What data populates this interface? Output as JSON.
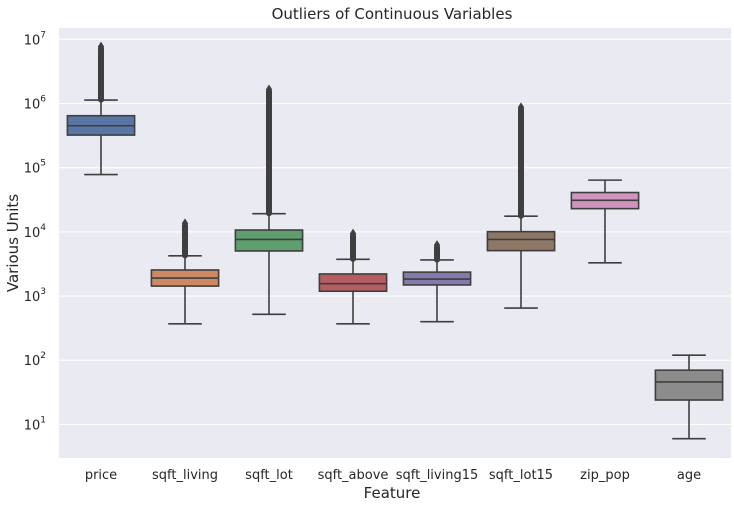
{
  "chart_data": {
    "type": "boxplot",
    "title": "Outliers of Continuous Variables",
    "xlabel": "Feature",
    "ylabel": "Various Units",
    "yscale": "log",
    "ylim": [
      3,
      15000000
    ],
    "y_ticks": [
      {
        "value": 10,
        "base": "10",
        "exp": "1"
      },
      {
        "value": 100,
        "base": "10",
        "exp": "2"
      },
      {
        "value": 1000,
        "base": "10",
        "exp": "3"
      },
      {
        "value": 10000,
        "base": "10",
        "exp": "4"
      },
      {
        "value": 100000,
        "base": "10",
        "exp": "5"
      },
      {
        "value": 1000000,
        "base": "10",
        "exp": "6"
      },
      {
        "value": 10000000,
        "base": "10",
        "exp": "7"
      }
    ],
    "grid": true,
    "categories": [
      "price",
      "sqft_living",
      "sqft_lot",
      "sqft_above",
      "sqft_living15",
      "sqft_lot15",
      "zip_pop",
      "age"
    ],
    "series": [
      {
        "name": "price",
        "color": "#5975a4",
        "whislo": 78000,
        "q1": 322000,
        "median": 450000,
        "q3": 645000,
        "whishi": 1130000,
        "fliers_from": 1150000,
        "fliers_to": 7700000
      },
      {
        "name": "sqft_living",
        "color": "#cc8963",
        "whislo": 370,
        "q1": 1430,
        "median": 1910,
        "q3": 2550,
        "whishi": 4230,
        "fliers_from": 4300,
        "fliers_to": 13540
      },
      {
        "name": "sqft_lot",
        "color": "#5f9e6e",
        "whislo": 520,
        "q1": 5040,
        "median": 7620,
        "q3": 10690,
        "whishi": 19200,
        "fliers_from": 19500,
        "fliers_to": 1650000
      },
      {
        "name": "sqft_above",
        "color": "#b55d60",
        "whislo": 370,
        "q1": 1190,
        "median": 1560,
        "q3": 2210,
        "whishi": 3740,
        "fliers_from": 3800,
        "fliers_to": 9400
      },
      {
        "name": "sqft_living15",
        "color": "#857aab",
        "whislo": 399,
        "q1": 1490,
        "median": 1840,
        "q3": 2360,
        "whishi": 3660,
        "fliers_from": 3700,
        "fliers_to": 6210
      },
      {
        "name": "sqft_lot15",
        "color": "#8d7866",
        "whislo": 651,
        "q1": 5100,
        "median": 7620,
        "q3": 10080,
        "whishi": 17550,
        "fliers_from": 17800,
        "fliers_to": 871200
      },
      {
        "name": "zip_pop",
        "color": "#d095bf",
        "whislo": 3300,
        "q1": 23000,
        "median": 31000,
        "q3": 41000,
        "whishi": 64000,
        "fliers_from": null,
        "fliers_to": null
      },
      {
        "name": "age",
        "color": "#8c8c8c",
        "whislo": 6,
        "q1": 24,
        "median": 46,
        "q3": 70,
        "whishi": 120,
        "fliers_from": null,
        "fliers_to": null
      }
    ]
  },
  "colors": {
    "plot_background": "#eaeaf2",
    "grid": "#ffffff",
    "box_edge": "#3f3f3f",
    "flier_fill": "#3f3f3f"
  }
}
